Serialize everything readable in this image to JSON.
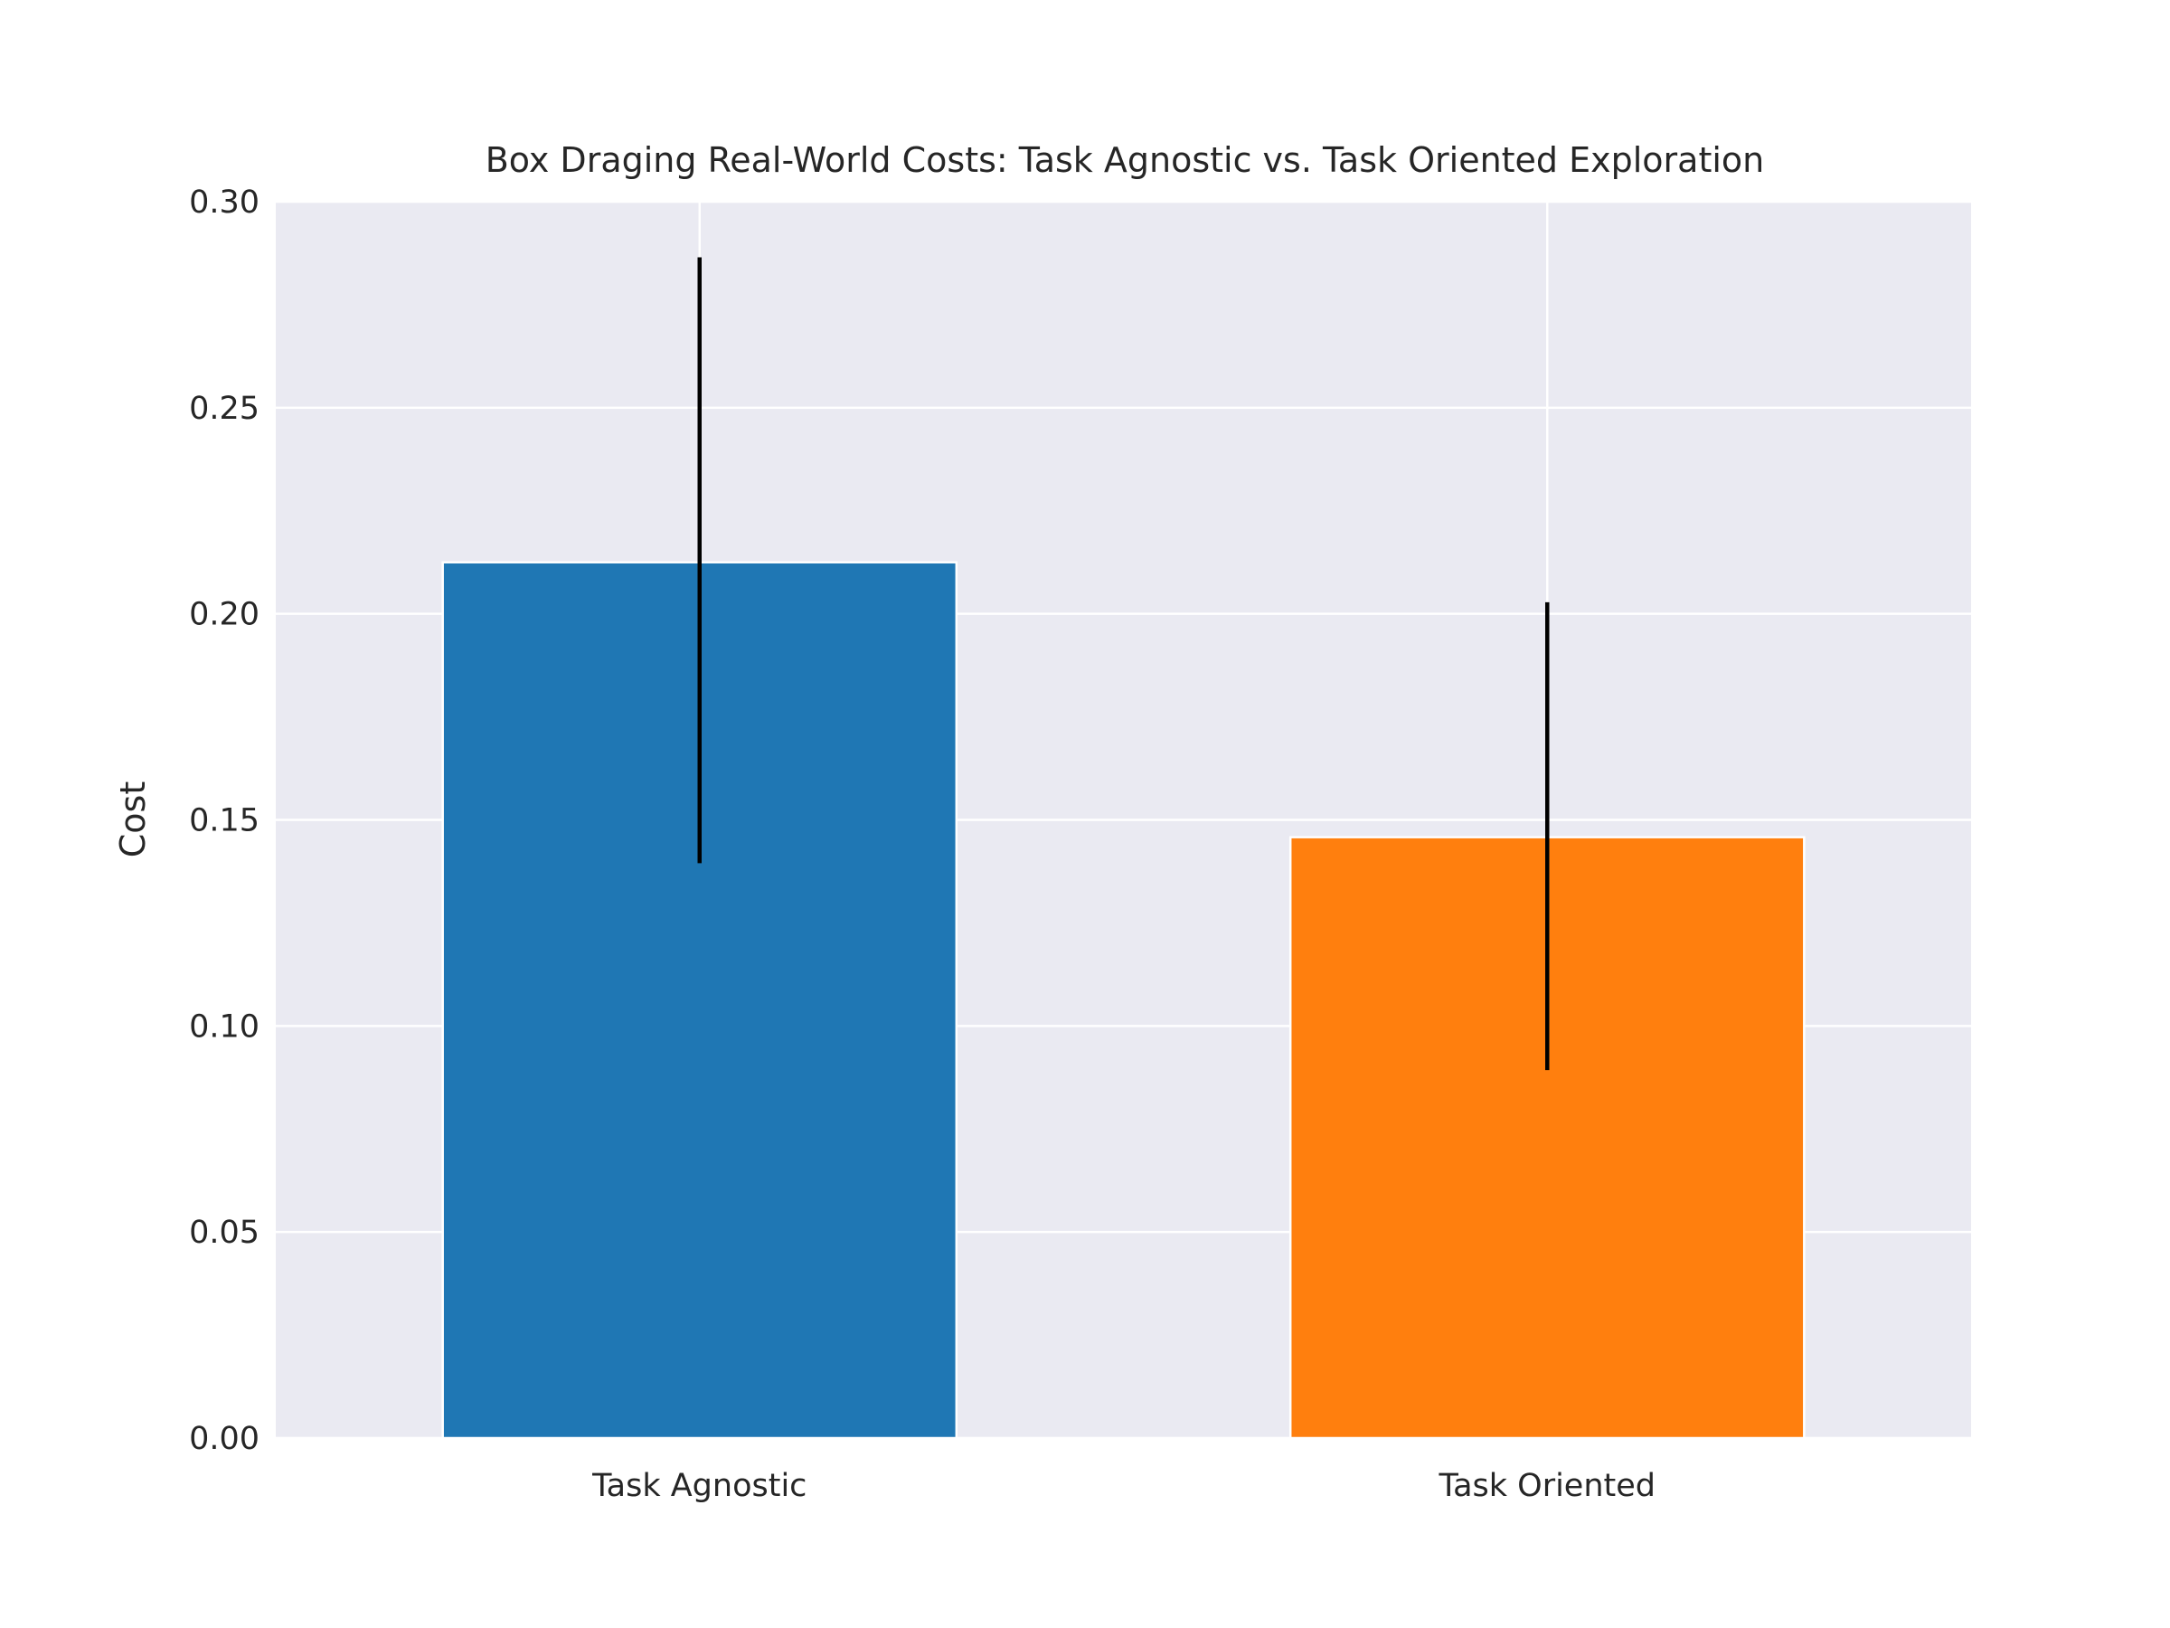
{
  "chart_data": {
    "type": "bar",
    "title": "Box Draging Real-World Costs: Task Agnostic vs. Task Oriented Exploration",
    "xlabel": "",
    "ylabel": "Cost",
    "categories": [
      "Task Agnostic",
      "Task Oriented"
    ],
    "values": [
      0.2125,
      0.1458
    ],
    "error_low": [
      0.1395,
      0.0893
    ],
    "error_high": [
      0.2865,
      0.2028
    ],
    "colors": [
      "#1f77b4",
      "#ff7f0e"
    ],
    "ylim": [
      0,
      0.3
    ],
    "yticks": [
      "0.00",
      "0.05",
      "0.10",
      "0.15",
      "0.20",
      "0.25",
      "0.30"
    ],
    "plot_background": "#eaeaf2",
    "grid": true,
    "legend": "none"
  }
}
